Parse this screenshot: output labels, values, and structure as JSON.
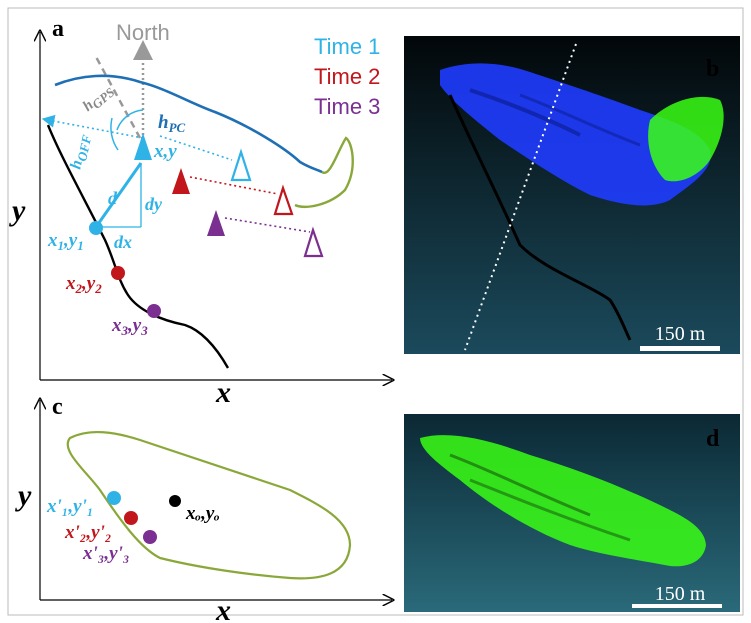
{
  "colors": {
    "time1": "#2fb3e6",
    "time2": "#c0161c",
    "time3": "#7a2f91",
    "pc_blue": "#1f6fb5",
    "olive": "#8aa83a",
    "gps_gray": "#999999",
    "cloud_blue": "#1f3cff",
    "cloud_green": "#39ff14",
    "panel_bg_top": "#020709",
    "panel_bg_bottom": "#1b4a5c"
  },
  "panel_a": {
    "letter": "a",
    "north_label": "North",
    "legend": [
      "Time 1",
      "Time 2",
      "Time 3"
    ],
    "y_axis": "y",
    "x_axis": "x",
    "h_gps": "h",
    "h_gps_sub": "GPS",
    "h_pc": "h",
    "h_pc_sub": "PC",
    "h_off": "h",
    "h_off_sub": "OFF",
    "d_label": "d",
    "dx_label": "dx",
    "dy_label": "dy",
    "xy_label": "x,y",
    "p1_x": "x",
    "p1_sub1": "1",
    "p1_comma": ",y",
    "p1_sub2": "1",
    "p2_x": "x",
    "p2_sub1": "2",
    "p2_comma": ",y",
    "p2_sub2": "2",
    "p3_x": "x",
    "p3_sub1": "3",
    "p3_comma": ",y",
    "p3_sub2": "3"
  },
  "panel_b": {
    "letter": "b",
    "scale": "150 m"
  },
  "panel_c": {
    "letter": "c",
    "y_axis": "y",
    "x_axis": "x",
    "q1": "x'₁,y'₁",
    "q2": "x'₂,y'₂",
    "q3": "x'₃,y'₃",
    "center": "xₒ,yₒ"
  },
  "panel_d": {
    "letter": "d",
    "scale": "150 m"
  }
}
